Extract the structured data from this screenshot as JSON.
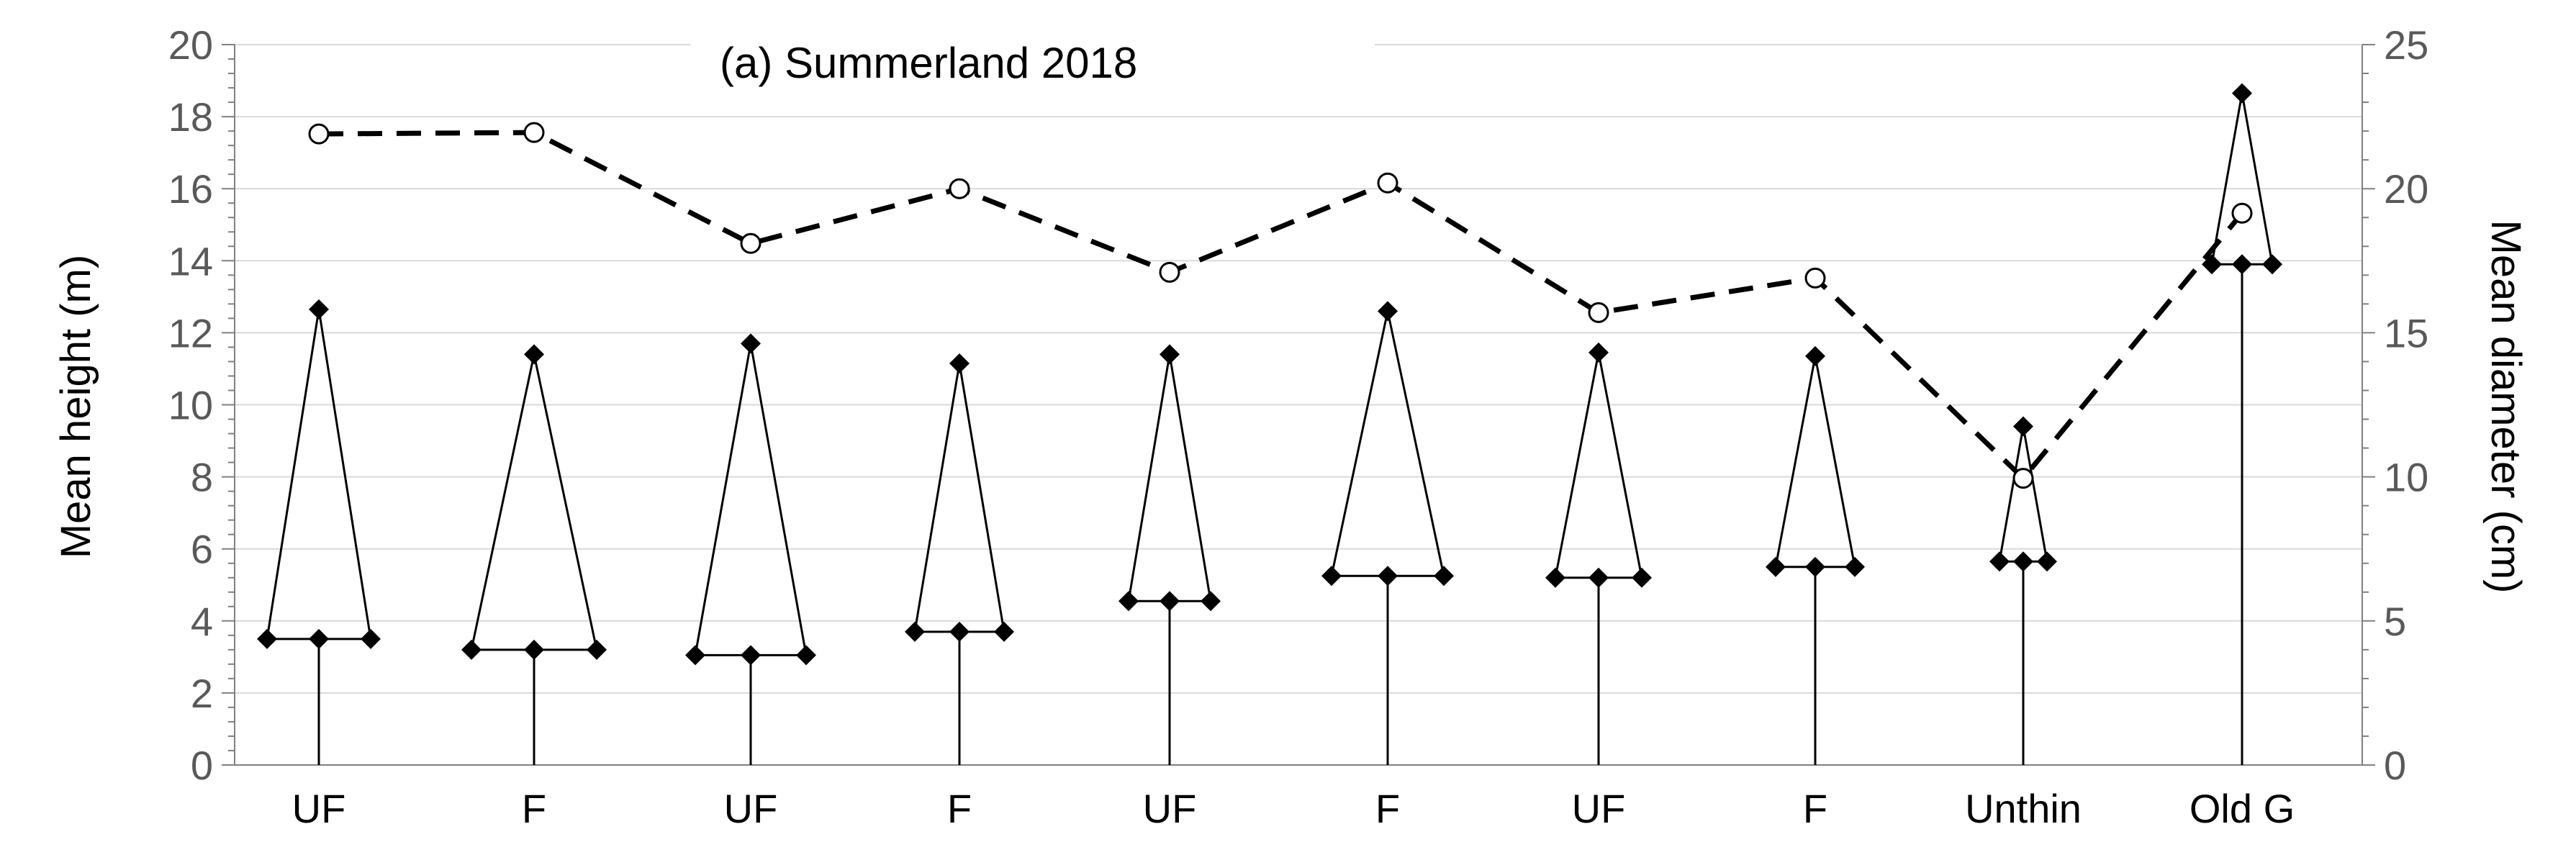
{
  "chart_data": {
    "type": "line",
    "title": "(a) Summerland 2018",
    "categories": [
      "UF",
      "F",
      "UF",
      "F",
      "UF",
      "F",
      "UF",
      "F",
      "Unthin",
      "Old G"
    ],
    "y_left": {
      "label": "Mean height (m)",
      "range": [
        0,
        20
      ],
      "ticks": [
        "0",
        "2",
        "4",
        "6",
        "8",
        "10",
        "12",
        "14",
        "16",
        "18",
        "20"
      ]
    },
    "y_right": {
      "label": "Mean diameter (cm)",
      "range": [
        0,
        25
      ],
      "ticks": [
        "0",
        "5",
        "10",
        "15",
        "20",
        "25"
      ]
    },
    "series": [
      {
        "role": "tree-height-triangles",
        "axis": "left",
        "marker": "diamond",
        "apex_height": [
          12.65,
          11.4,
          11.7,
          11.15,
          11.4,
          12.6,
          11.45,
          11.35,
          9.4,
          18.65
        ],
        "crown_base_height": [
          3.5,
          3.2,
          3.05,
          3.7,
          4.55,
          5.25,
          5.2,
          5.5,
          5.65,
          13.9
        ]
      },
      {
        "role": "diameter",
        "axis": "right",
        "marker": "open-circle",
        "line": "dashed",
        "values": [
          21.9,
          21.95,
          18.1,
          20.0,
          17.1,
          20.2,
          15.7,
          16.9,
          9.95,
          19.15
        ]
      }
    ],
    "grid": "horizontal"
  },
  "colors": {
    "line": "#000000",
    "grid": "#d9d9d9",
    "axis": "#808080",
    "tick_text": "#595959"
  }
}
